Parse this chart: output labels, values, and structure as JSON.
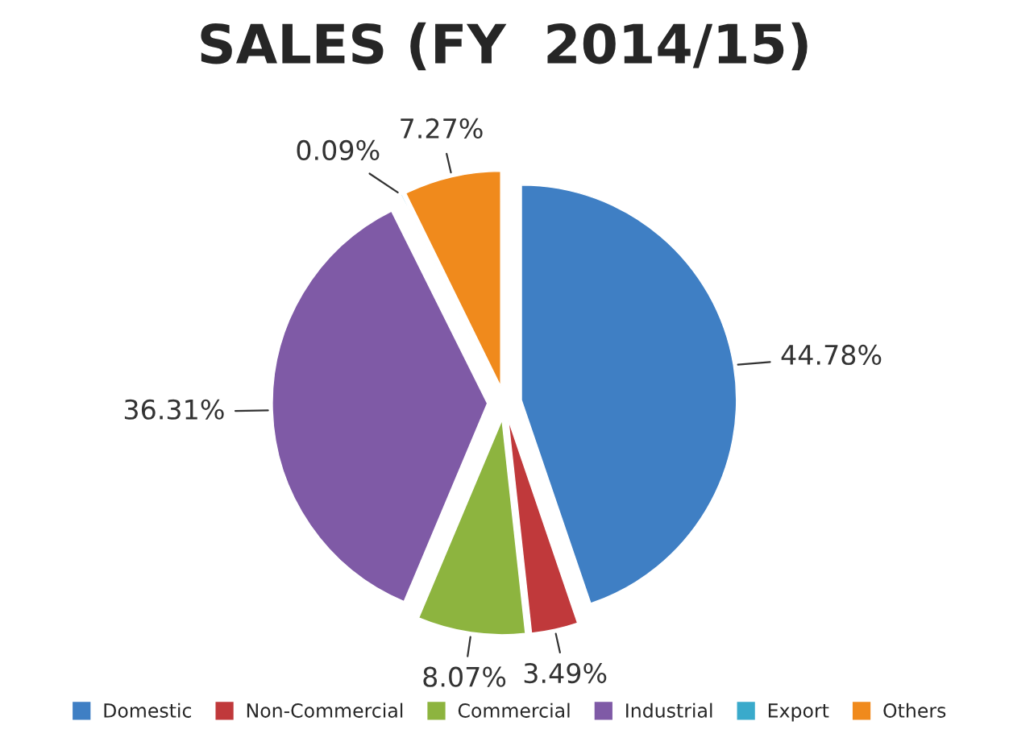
{
  "chart_data": {
    "type": "pie",
    "title": "SALES (FY  2014/15)",
    "categories": [
      "Domestic",
      "Non-Commercial",
      "Commercial",
      "Industrial",
      "Export",
      "Others"
    ],
    "values": [
      44.78,
      3.49,
      8.07,
      36.31,
      0.09,
      7.27
    ],
    "colors": [
      "#3f7fc4",
      "#c0393b",
      "#8db43f",
      "#7f5aa6",
      "#3aaacb",
      "#f08a1c"
    ],
    "value_labels": [
      "44.78%",
      "3.49%",
      "8.07%",
      "36.31%",
      "0.09%",
      "7.27%"
    ],
    "legend": "bottom"
  }
}
